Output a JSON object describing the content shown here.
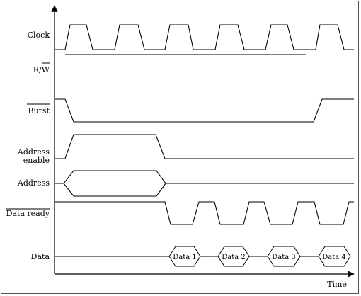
{
  "diagram": {
    "signals": [
      {
        "key": "clock",
        "label": "Clock"
      },
      {
        "key": "rw",
        "label": "R/W"
      },
      {
        "key": "burst",
        "label": "Burst"
      },
      {
        "key": "address_enable",
        "label_line1": "Address",
        "label_line2": "enable"
      },
      {
        "key": "address",
        "label": "Address"
      },
      {
        "key": "data_ready",
        "label": "Data ready"
      },
      {
        "key": "data",
        "label": "Data"
      }
    ],
    "data_phases": [
      "Data 1",
      "Data 2",
      "Data 3",
      "Data 4"
    ],
    "x_axis_label": "Time"
  }
}
